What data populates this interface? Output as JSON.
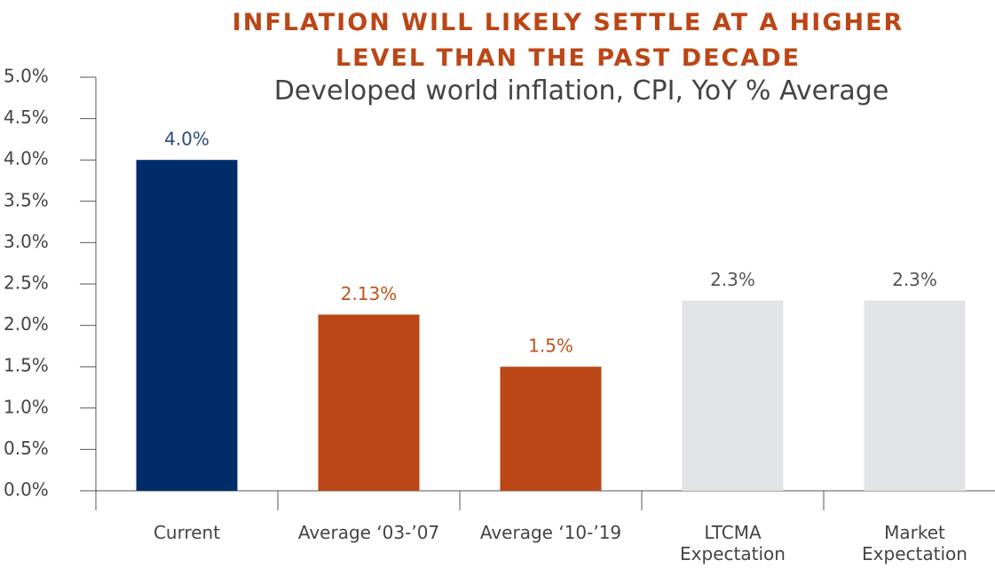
{
  "chart_data": {
    "type": "bar",
    "title": "INFLATION WILL LIKELY SETTLE AT A HIGHER\nLEVEL THAN THE PAST DECADE",
    "subtitle": "Developed world inflation, CPI, YoY % Average",
    "categories": [
      "Current",
      "Average ‘03-’07",
      "Average ‘10-’19",
      "LTCMA\nExpectation",
      "Market\nExpectation"
    ],
    "values": [
      4.0,
      2.13,
      1.5,
      2.3,
      2.3
    ],
    "value_labels": [
      "4.0%",
      "2.13%",
      "1.5%",
      "2.3%",
      "2.3%"
    ],
    "colors": [
      "#002d6a",
      "#bb4616",
      "#bb4616",
      "#e3e4e8",
      "#e3e4e8"
    ],
    "label_colors": [
      "#2c4a7c",
      "#c0521e",
      "#c0521e",
      "#555555",
      "#555555"
    ],
    "ylim": [
      0,
      5
    ],
    "yticks": [
      {
        "value": 0,
        "label": "0.0%"
      },
      {
        "value": 0.5,
        "label": "0.5%"
      },
      {
        "value": 1,
        "label": "1.0%"
      },
      {
        "value": 1.5,
        "label": "1.5%"
      },
      {
        "value": 2,
        "label": "2.0%"
      },
      {
        "value": 2.5,
        "label": "2.5%"
      },
      {
        "value": 3,
        "label": "3.0%"
      },
      {
        "value": 3.5,
        "label": "3.5%"
      },
      {
        "value": 4,
        "label": "4.0%"
      },
      {
        "value": 4.5,
        "label": "4.5%"
      },
      {
        "value": 5,
        "label": "5.0%"
      }
    ],
    "grid": false
  }
}
